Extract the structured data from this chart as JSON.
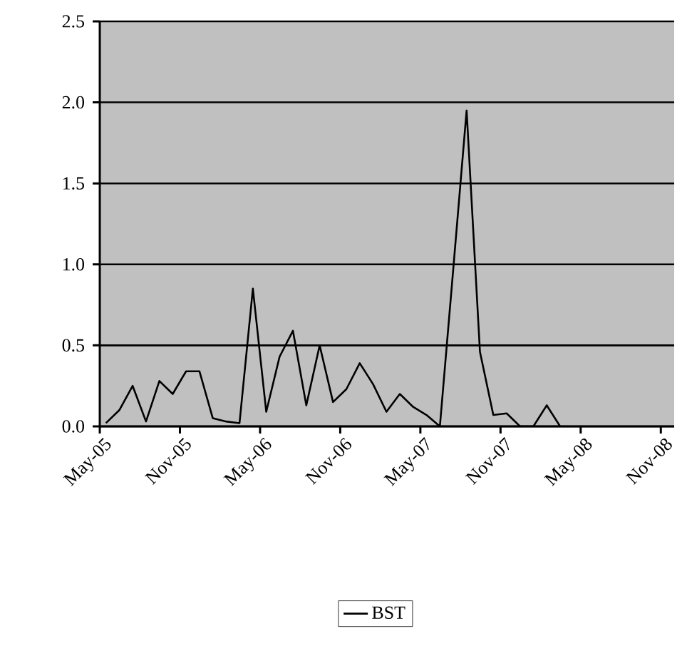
{
  "chart_data": {
    "type": "line",
    "x": [
      "2005-05-15",
      "2005-06-15",
      "2005-07-15",
      "2005-08-15",
      "2005-09-15",
      "2005-10-15",
      "2005-11-15",
      "2005-12-15",
      "2006-01-15",
      "2006-02-15",
      "2006-03-15",
      "2006-04-15",
      "2006-05-15",
      "2006-06-15",
      "2006-07-15",
      "2006-08-15",
      "2006-09-15",
      "2006-10-15",
      "2006-11-15",
      "2006-12-15",
      "2007-01-15",
      "2007-02-15",
      "2007-03-15",
      "2007-04-15",
      "2007-05-15",
      "2007-06-15",
      "2007-07-15",
      "2007-08-15",
      "2007-09-15",
      "2007-10-15",
      "2007-11-15",
      "2007-12-15",
      "2008-01-15",
      "2008-02-15",
      "2008-03-15"
    ],
    "series": [
      {
        "name": "BST",
        "color": "#000000",
        "values": [
          0.02,
          0.1,
          0.25,
          0.03,
          0.28,
          0.2,
          0.34,
          0.34,
          0.05,
          0.03,
          0.02,
          0.85,
          0.09,
          0.43,
          0.59,
          0.13,
          0.5,
          0.15,
          0.23,
          0.39,
          0.26,
          0.09,
          0.2,
          0.12,
          0.07,
          0.0,
          0.97,
          1.95,
          0.46,
          0.07,
          0.08,
          0.0,
          0.0,
          0.13,
          0.0
        ]
      }
    ],
    "xlim": [
      "2005-05-01",
      "2008-12-01"
    ],
    "xticks": [
      {
        "value": "2005-05-01",
        "label": "May-05"
      },
      {
        "value": "2005-11-01",
        "label": "Nov-05"
      },
      {
        "value": "2006-05-01",
        "label": "May-06"
      },
      {
        "value": "2006-11-01",
        "label": "Nov-06"
      },
      {
        "value": "2007-05-01",
        "label": "May-07"
      },
      {
        "value": "2007-11-01",
        "label": "Nov-07"
      },
      {
        "value": "2008-05-01",
        "label": "May-08"
      },
      {
        "value": "2008-11-01",
        "label": "Nov-08"
      }
    ],
    "ylim": [
      0,
      2.5
    ],
    "yticks": [
      {
        "value": 0,
        "label": "0.0"
      },
      {
        "value": 0.5,
        "label": "0.5"
      },
      {
        "value": 1,
        "label": "1.0"
      },
      {
        "value": 1.5,
        "label": "1.5"
      },
      {
        "value": 2,
        "label": "2.0"
      },
      {
        "value": 2.5,
        "label": "2.5"
      }
    ],
    "grid": "y",
    "legend": "bottom",
    "marker": "none",
    "line_style": "solid"
  }
}
